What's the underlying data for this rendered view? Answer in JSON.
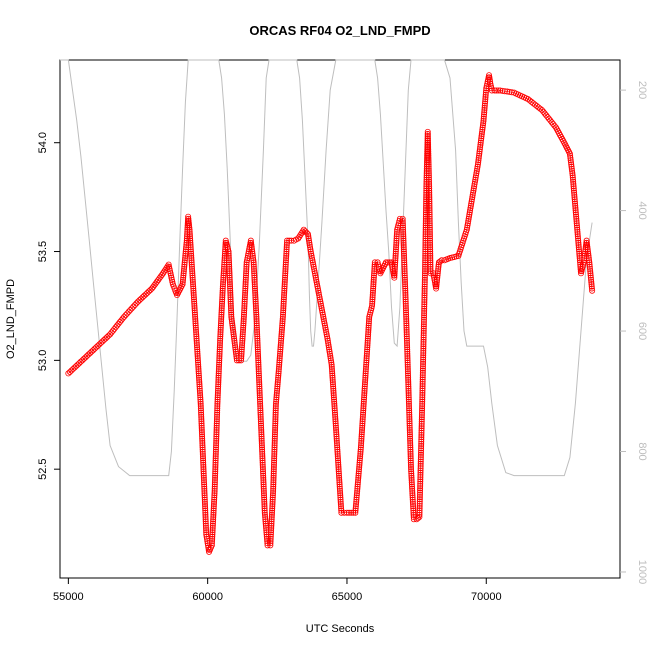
{
  "chart_data": {
    "type": "scatter",
    "title": "ORCAS RF04 O2_LND_FMPD",
    "xlabel": "UTC Seconds",
    "ylabel": "O2_LND_FMPD",
    "xlim": [
      54700,
      74800
    ],
    "ylim": [
      52.0,
      54.38
    ],
    "x_ticks": [
      55000,
      60000,
      65000,
      70000
    ],
    "y_ticks": [
      52.5,
      53.0,
      53.5,
      54.0
    ],
    "y2_ticks": [
      200,
      400,
      600,
      800,
      1000
    ],
    "y2lim": [
      1010,
      150
    ],
    "colors": {
      "primary": "#ff0000",
      "secondary": "#bebebe",
      "right_axis": "#bebebe"
    },
    "series": [
      {
        "marker": "open-circle",
        "x": [
          55000,
          55500,
          56000,
          56500,
          57000,
          57500,
          58000,
          58400,
          58600,
          58750,
          58900,
          59100,
          59250,
          59300,
          59350,
          59450,
          59550,
          59650,
          59750,
          59850,
          59950,
          60050,
          60150,
          60250,
          60350,
          60450,
          60550,
          60650,
          60750,
          60850,
          61050,
          61200,
          61300,
          61400,
          61550,
          61650,
          61750,
          61850,
          61950,
          62050,
          62150,
          62250,
          62350,
          62450,
          62550,
          62700,
          62850,
          63000,
          63100,
          63250,
          63450,
          63600,
          63700,
          63850,
          64000,
          64150,
          64300,
          64450,
          64600,
          64700,
          64800,
          64900,
          65000,
          65300,
          65500,
          65600,
          65700,
          65800,
          65900,
          66000,
          66100,
          66200,
          66400,
          66600,
          66700,
          66800,
          66900,
          67000,
          67100,
          67200,
          67300,
          67400,
          67500,
          67600,
          67700,
          67800,
          67850,
          67900,
          67950,
          68000,
          68100,
          68200,
          68300,
          68400,
          68500,
          68700,
          69000,
          69300,
          69500,
          69700,
          69900,
          70000,
          70100,
          70150,
          70200,
          70300,
          70500,
          71000,
          71500,
          72000,
          72500,
          72800,
          73000,
          73100,
          73200,
          73300,
          73400,
          73500,
          73600,
          73700,
          73800
        ],
        "y": [
          52.94,
          53.0,
          53.06,
          53.12,
          53.2,
          53.27,
          53.33,
          53.4,
          53.44,
          53.35,
          53.3,
          53.35,
          53.55,
          53.66,
          53.6,
          53.4,
          53.2,
          53.0,
          52.8,
          52.5,
          52.2,
          52.12,
          52.15,
          52.4,
          52.8,
          53.1,
          53.35,
          53.55,
          53.5,
          53.2,
          53.0,
          53.0,
          53.2,
          53.45,
          53.55,
          53.45,
          53.2,
          52.9,
          52.6,
          52.3,
          52.15,
          52.15,
          52.4,
          52.8,
          52.95,
          53.2,
          53.55,
          53.55,
          53.55,
          53.56,
          53.6,
          53.58,
          53.5,
          53.4,
          53.3,
          53.2,
          53.1,
          52.98,
          52.7,
          52.5,
          52.3,
          52.3,
          52.3,
          52.3,
          52.6,
          52.8,
          53.0,
          53.2,
          53.25,
          53.45,
          53.45,
          53.4,
          53.45,
          53.45,
          53.38,
          53.6,
          53.65,
          53.65,
          53.3,
          52.9,
          52.5,
          52.27,
          52.27,
          52.28,
          52.8,
          53.4,
          53.8,
          54.05,
          53.8,
          53.4,
          53.4,
          53.33,
          53.45,
          53.46,
          53.46,
          53.47,
          53.48,
          53.6,
          53.75,
          53.9,
          54.1,
          54.25,
          54.31,
          54.27,
          54.24,
          54.24,
          54.24,
          54.23,
          54.2,
          54.15,
          54.07,
          54.0,
          53.95,
          53.85,
          53.7,
          53.55,
          53.4,
          53.45,
          53.55,
          53.45,
          53.32
        ]
      },
      {
        "marker": "line",
        "axis": "right",
        "x": [
          54700,
          54850,
          55000,
          55150,
          55300,
          55450,
          55600,
          55750,
          55900,
          56050,
          56200,
          56350,
          56500,
          56800,
          57200,
          57800,
          58400,
          58600,
          58700,
          58800,
          58900,
          59000,
          59100,
          59200,
          59300,
          59450,
          59650,
          59800,
          59950,
          60100,
          60250,
          60400,
          60500,
          60600,
          60700,
          60800,
          60900,
          61000,
          61100,
          61250,
          61400,
          61550,
          61700,
          61850,
          62000,
          62100,
          62200,
          62350,
          62500,
          62650,
          62800,
          62950,
          63100,
          63200,
          63300,
          63400,
          63500,
          63600,
          63650,
          63700,
          63750,
          63800,
          63850,
          63950,
          64100,
          64250,
          64400,
          64600,
          64800,
          65000,
          65200,
          65400,
          65600,
          65800,
          66000,
          66100,
          66200,
          66300,
          66400,
          66500,
          66600,
          66700,
          66800,
          66900,
          67000,
          67100,
          67200,
          67300,
          67400,
          67500,
          67600,
          67700,
          67800,
          67900,
          68000,
          68100,
          68300,
          68500,
          68700,
          68900,
          69000,
          69100,
          69200,
          69300,
          69400,
          69500,
          69700,
          69900,
          70050,
          70200,
          70400,
          70700,
          71000,
          71500,
          72000,
          72200,
          72400,
          72600,
          72800,
          73000,
          73200,
          73400,
          73600,
          73800
        ],
        "y": [
          150,
          150,
          150,
          200,
          250,
          310,
          380,
          450,
          520,
          590,
          660,
          730,
          790,
          825,
          840,
          840,
          840,
          840,
          800,
          700,
          580,
          450,
          330,
          220,
          150,
          150,
          150,
          150,
          150,
          150,
          150,
          150,
          180,
          240,
          330,
          440,
          560,
          640,
          650,
          650,
          650,
          640,
          580,
          460,
          300,
          180,
          150,
          150,
          150,
          150,
          150,
          150,
          150,
          150,
          180,
          250,
          350,
          450,
          540,
          600,
          625,
          625,
          600,
          530,
          420,
          300,
          200,
          150,
          150,
          150,
          150,
          150,
          150,
          150,
          150,
          180,
          240,
          320,
          400,
          470,
          560,
          620,
          625,
          560,
          440,
          320,
          200,
          150,
          150,
          150,
          150,
          150,
          150,
          150,
          150,
          150,
          150,
          150,
          180,
          300,
          420,
          520,
          600,
          625,
          625,
          625,
          625,
          625,
          660,
          720,
          790,
          835,
          840,
          840,
          840,
          840,
          840,
          840,
          840,
          810,
          720,
          600,
          480,
          420
        ]
      }
    ]
  }
}
